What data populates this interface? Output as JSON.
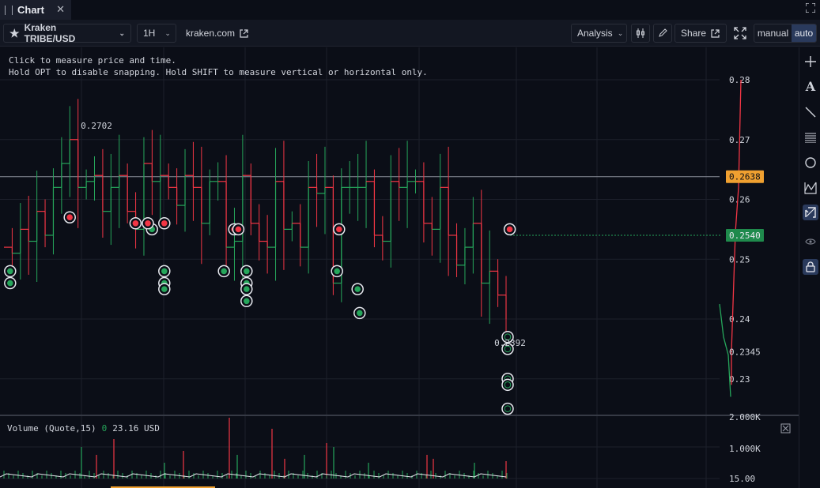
{
  "tab": {
    "label": "Chart",
    "close": "✕"
  },
  "toolbar": {
    "symbol": "Kraken TRIBE/USD",
    "interval": "1H",
    "source": "kraken.com",
    "analysis": "Analysis",
    "share": "Share",
    "manual": "manual",
    "auto": "auto"
  },
  "hint": {
    "line1": "Click to measure price and time.",
    "line2": "Hold OPT to disable snapping. Hold SHIFT to measure vertical or horizontal only."
  },
  "volume": {
    "label": "Volume (Quote,15)",
    "value_prefix": "0",
    "value": "23.16 USD"
  },
  "colors": {
    "up": "#26a65b",
    "down": "#f23645",
    "background": "#0b0e17",
    "price_badge_orange": "#f0a030",
    "price_badge_green": "#1f8a4c"
  },
  "chart_data": {
    "type": "candlestick",
    "y_axis_ticks": [
      "0.28",
      "0.27",
      "0.26",
      "0.25",
      "0.24",
      "0.23"
    ],
    "ylim": [
      0.2275,
      0.2805
    ],
    "price_labels": {
      "high_marker": "0.2702",
      "low_marker": "0.2392",
      "horizontal_line": "0.2638",
      "current_price": "0.2540",
      "extra_level": "0.2345",
      "clipped_level": "2.000K"
    },
    "volume_axis_ticks": [
      "1.000K",
      "15.00"
    ],
    "price_series": [
      0.252,
      0.251,
      0.255,
      0.253,
      0.258,
      0.254,
      0.262,
      0.266,
      0.27,
      0.262,
      0.263,
      0.264,
      0.258,
      0.262,
      0.264,
      0.258,
      0.255,
      0.266,
      0.263,
      0.264,
      0.262,
      0.259,
      0.264,
      0.262,
      0.256,
      0.263,
      0.263,
      0.252,
      0.253,
      0.264,
      0.256,
      0.253,
      0.252,
      0.263,
      0.255,
      0.256,
      0.252,
      0.262,
      0.261,
      0.262,
      0.246,
      0.262,
      0.262,
      0.262,
      0.263,
      0.254,
      0.253,
      0.263,
      0.262,
      0.263,
      0.263,
      0.256,
      0.255,
      0.262,
      0.254,
      0.249,
      0.252,
      0.256,
      0.246,
      0.248,
      0.244,
      0.24
    ],
    "trade_markers": {
      "buy": [
        [
          0.248,
          0.3
        ],
        [
          0.246,
          0.3
        ],
        [
          0.255,
          7.2
        ],
        [
          0.248,
          7.8
        ],
        [
          0.246,
          7.8
        ],
        [
          0.245,
          7.8
        ],
        [
          0.248,
          10.7
        ],
        [
          0.248,
          11.8
        ],
        [
          0.246,
          11.8
        ],
        [
          0.245,
          11.8
        ],
        [
          0.243,
          11.8
        ],
        [
          0.248,
          16.2
        ],
        [
          0.245,
          17.2
        ],
        [
          0.241,
          17.3
        ],
        [
          0.237,
          24.5
        ],
        [
          0.235,
          24.5
        ],
        [
          0.23,
          24.5
        ],
        [
          0.229,
          24.5
        ],
        [
          0.225,
          24.5
        ]
      ],
      "sell": [
        [
          0.257,
          3.2
        ],
        [
          0.256,
          6.4
        ],
        [
          0.256,
          7.0
        ],
        [
          0.256,
          7.8
        ],
        [
          0.255,
          11.2
        ],
        [
          0.255,
          11.4
        ],
        [
          0.255,
          16.3
        ],
        [
          0.255,
          24.6
        ]
      ]
    }
  }
}
